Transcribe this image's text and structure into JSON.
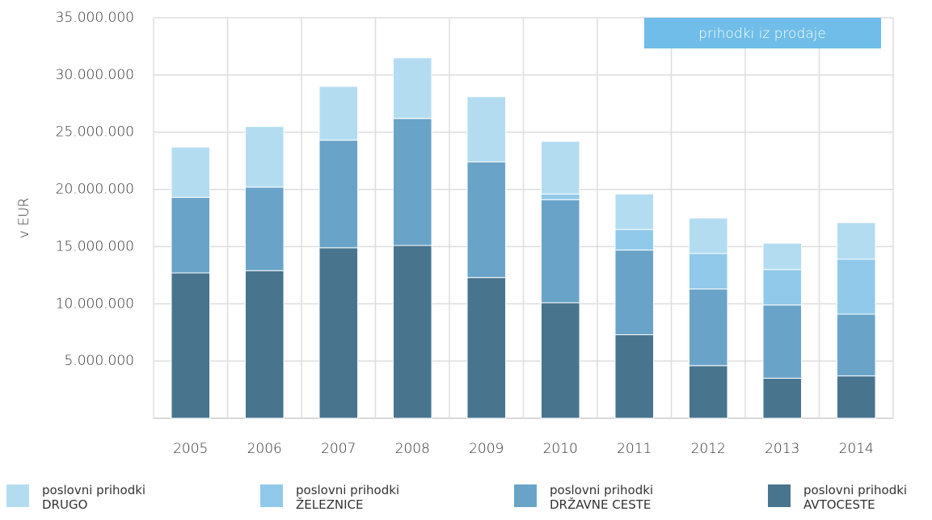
{
  "chart_data": {
    "type": "stacked_bar",
    "badge": "prihodki iz prodaje",
    "y_label": "v EUR",
    "categories": [
      "2005",
      "2006",
      "2007",
      "2008",
      "2009",
      "2010",
      "2011",
      "2012",
      "2013",
      "2014"
    ],
    "series": [
      {
        "name": "poslovni prihodki\nDRUGO",
        "color": "#b4dcf1",
        "values": [
          4400000,
          5300000,
          4700000,
          5300000,
          5700000,
          4600000,
          3100000,
          3100000,
          2300000,
          3200000
        ]
      },
      {
        "name": "poslovni prihodki\nŽELEZNICE",
        "color": "#90c9ea",
        "values": [
          0,
          0,
          0,
          0,
          0,
          500000,
          1800000,
          3100000,
          3100000,
          4800000
        ]
      },
      {
        "name": "poslovni prihodki\nDRŽAVNE CESTE",
        "color": "#6aa3c8",
        "values": [
          6600000,
          7300000,
          9400000,
          11100000,
          10100000,
          9000000,
          7400000,
          6700000,
          6400000,
          5400000
        ]
      },
      {
        "name": "poslovni prihodki\nAVTOCESTE",
        "color": "#48748e",
        "values": [
          12700000,
          12900000,
          14900000,
          15100000,
          12300000,
          10100000,
          7300000,
          4600000,
          3500000,
          3700000
        ]
      }
    ],
    "ylim": [
      0,
      35000000
    ],
    "yticks": [
      {
        "value": 5000000,
        "label": "5.000.000"
      },
      {
        "value": 10000000,
        "label": "10.000.000"
      },
      {
        "value": 15000000,
        "label": "15.000.000"
      },
      {
        "value": 20000000,
        "label": "20.000.000"
      },
      {
        "value": 25000000,
        "label": "25.000.000"
      },
      {
        "value": 30000000,
        "label": "30.000.000"
      },
      {
        "value": 35000000,
        "label": "35.000.000"
      }
    ],
    "grid": true
  }
}
